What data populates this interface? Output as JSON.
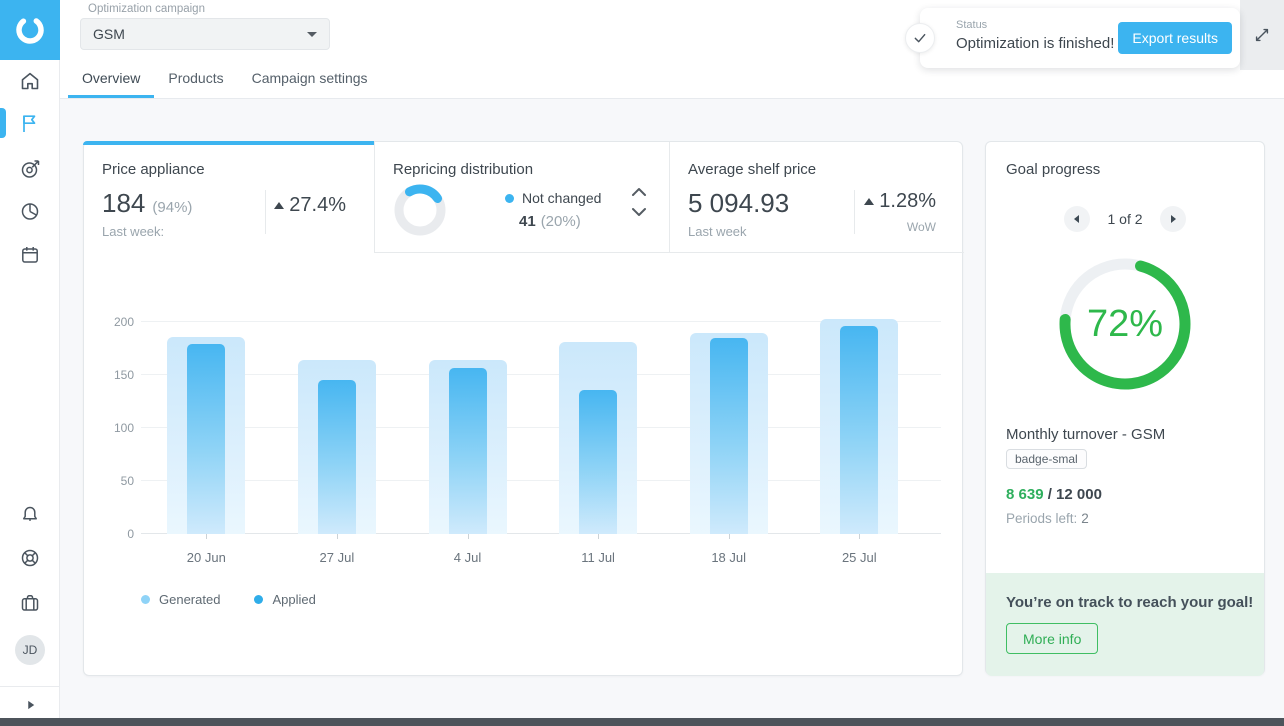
{
  "header": {
    "campaign_label": "Optimization campaign",
    "campaign_value": "GSM",
    "status": {
      "label": "Status",
      "message": "Optimization is finished!",
      "export_button": "Export results"
    }
  },
  "tabs": {
    "items": [
      {
        "label": "Overview",
        "active": true
      },
      {
        "label": "Products",
        "active": false
      },
      {
        "label": "Campaign settings",
        "active": false
      }
    ]
  },
  "sidebar": {
    "avatar_initials": "JD"
  },
  "stat_tabs": {
    "price_appliance": {
      "title": "Price appliance",
      "value": "184",
      "share": "(94%)",
      "caption": "Last week:",
      "delta": "27.4%"
    },
    "repricing": {
      "title": "Repricing distribution",
      "legend_label": "Not changed",
      "legend_value": "41",
      "legend_share": "(20%)",
      "donut_percent": 24
    },
    "avg_shelf_price": {
      "title": "Average shelf price",
      "value": "5 094.93",
      "caption": "Last week",
      "delta": "1.28%",
      "delta_caption": "WoW"
    }
  },
  "chart_data": {
    "type": "bar",
    "categories": [
      "20 Jun",
      "27 Jul",
      "4 Jul",
      "11 Jul",
      "18 Jul",
      "25 Jul"
    ],
    "series": [
      {
        "name": "Generated",
        "values": [
          186,
          164,
          164,
          181,
          190,
          203
        ]
      },
      {
        "name": "Applied",
        "values": [
          179,
          145,
          157,
          136,
          185,
          196
        ]
      }
    ],
    "ylim": [
      0,
      200
    ],
    "yticks": [
      0,
      50,
      100,
      150,
      200
    ],
    "grid": true,
    "legend_position": "bottom-left",
    "colors": {
      "legend_generated": "#8fd3f7",
      "legend_applied": "#2fade9"
    }
  },
  "goal": {
    "title": "Goal progress",
    "pagination": "1 of 2",
    "percent_label": "72%",
    "percent_value": 72,
    "metric_title": "Monthly turnover - GSM",
    "badge": "badge-smal",
    "current": "8 639",
    "target": "/ 12 000",
    "periods_label": "Periods left:",
    "periods_value": "2",
    "banner": "You’re on track to reach your goal!",
    "more_info_button": "More info",
    "accent_green": "#2eb84b"
  }
}
